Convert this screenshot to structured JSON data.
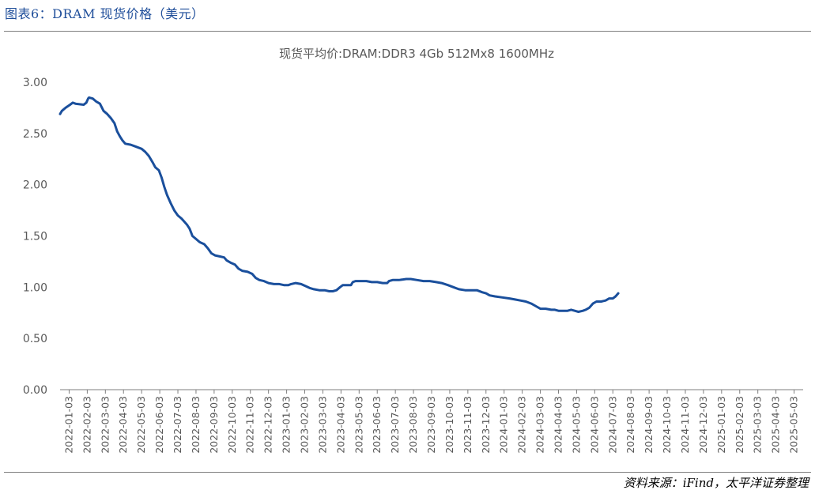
{
  "header": {
    "title": "图表6：DRAM 现货价格（美元）"
  },
  "footer": {
    "source": "资料来源：iFind，太平洋证券整理"
  },
  "colors": {
    "line": "#1a4f9c",
    "title": "#1f4e9a",
    "axis": "#7f7f7f",
    "text": "#595959"
  },
  "chart_data": {
    "type": "line",
    "title": "现货平均价:DRAM:DDR3 4Gb 512Mx8 1600MHz",
    "xlabel": "",
    "ylabel": "",
    "ylim": [
      0,
      3
    ],
    "yticks": [
      "0.00",
      "0.50",
      "1.00",
      "1.50",
      "2.00",
      "2.50",
      "3.00"
    ],
    "grid": false,
    "legend": "none",
    "x_categories": [
      "2022-01-03",
      "2022-02-03",
      "2022-03-03",
      "2022-04-03",
      "2022-05-03",
      "2022-06-03",
      "2022-07-03",
      "2022-08-03",
      "2022-09-03",
      "2022-10-03",
      "2022-11-03",
      "2022-12-03",
      "2023-01-03",
      "2023-02-03",
      "2023-03-03",
      "2023-04-03",
      "2023-05-03",
      "2023-06-03",
      "2023-07-03",
      "2023-08-03",
      "2023-09-03",
      "2023-10-03",
      "2023-11-03",
      "2023-12-03",
      "2024-01-03",
      "2024-02-03",
      "2024-03-03",
      "2024-04-03",
      "2024-05-03",
      "2024-06-03",
      "2024-07-03",
      "2024-08-03",
      "2024-09-03",
      "2024-10-03",
      "2024-11-03",
      "2024-12-03",
      "2025-01-03",
      "2025-02-03",
      "2025-03-03",
      "2025-04-03",
      "2025-05-03"
    ],
    "series": [
      {
        "name": "现货平均价:DRAM:DDR3 4Gb 512Mx8 1600MHz",
        "points": [
          [
            0.0,
            2.69
          ],
          [
            0.1,
            2.72
          ],
          [
            0.3,
            2.75
          ],
          [
            0.55,
            2.78
          ],
          [
            0.7,
            2.8
          ],
          [
            0.85,
            2.79
          ],
          [
            1.3,
            2.78
          ],
          [
            1.45,
            2.8
          ],
          [
            1.55,
            2.84
          ],
          [
            1.6,
            2.85
          ],
          [
            1.8,
            2.84
          ],
          [
            2.0,
            2.81
          ],
          [
            2.2,
            2.79
          ],
          [
            2.4,
            2.72
          ],
          [
            2.6,
            2.69
          ],
          [
            2.8,
            2.65
          ],
          [
            3.0,
            2.6
          ],
          [
            3.15,
            2.52
          ],
          [
            3.3,
            2.47
          ],
          [
            3.45,
            2.43
          ],
          [
            3.6,
            2.4
          ],
          [
            3.9,
            2.39
          ],
          [
            4.2,
            2.37
          ],
          [
            4.5,
            2.35
          ],
          [
            4.7,
            2.32
          ],
          [
            4.9,
            2.28
          ],
          [
            5.1,
            2.22
          ],
          [
            5.25,
            2.17
          ],
          [
            5.45,
            2.14
          ],
          [
            5.6,
            2.07
          ],
          [
            5.75,
            1.98
          ],
          [
            5.9,
            1.9
          ],
          [
            6.1,
            1.82
          ],
          [
            6.3,
            1.75
          ],
          [
            6.5,
            1.7
          ],
          [
            6.7,
            1.67
          ],
          [
            6.85,
            1.64
          ],
          [
            7.0,
            1.61
          ],
          [
            7.15,
            1.57
          ],
          [
            7.3,
            1.5
          ],
          [
            7.5,
            1.47
          ],
          [
            7.7,
            1.44
          ],
          [
            7.95,
            1.42
          ],
          [
            8.15,
            1.38
          ],
          [
            8.35,
            1.33
          ],
          [
            8.55,
            1.31
          ],
          [
            8.8,
            1.3
          ],
          [
            9.05,
            1.29
          ],
          [
            9.2,
            1.26
          ],
          [
            9.4,
            1.24
          ],
          [
            9.65,
            1.22
          ],
          [
            9.85,
            1.18
          ],
          [
            10.05,
            1.16
          ],
          [
            10.35,
            1.15
          ],
          [
            10.6,
            1.13
          ],
          [
            10.8,
            1.09
          ],
          [
            11.0,
            1.07
          ],
          [
            11.25,
            1.06
          ],
          [
            11.5,
            1.04
          ],
          [
            11.8,
            1.03
          ],
          [
            12.1,
            1.03
          ],
          [
            12.35,
            1.02
          ],
          [
            12.6,
            1.02
          ],
          [
            12.75,
            1.03
          ],
          [
            13.0,
            1.04
          ],
          [
            13.3,
            1.03
          ],
          [
            13.55,
            1.01
          ],
          [
            13.8,
            0.99
          ],
          [
            14.0,
            0.98
          ],
          [
            14.3,
            0.97
          ],
          [
            14.6,
            0.97
          ],
          [
            14.85,
            0.96
          ],
          [
            15.05,
            0.96
          ],
          [
            15.25,
            0.97
          ],
          [
            15.45,
            1.0
          ],
          [
            15.6,
            1.02
          ],
          [
            15.8,
            1.02
          ],
          [
            16.05,
            1.02
          ],
          [
            16.15,
            1.05
          ],
          [
            16.3,
            1.06
          ],
          [
            16.6,
            1.06
          ],
          [
            16.9,
            1.06
          ],
          [
            17.2,
            1.05
          ],
          [
            17.5,
            1.05
          ],
          [
            17.8,
            1.04
          ],
          [
            18.05,
            1.04
          ],
          [
            18.15,
            1.06
          ],
          [
            18.35,
            1.07
          ],
          [
            18.7,
            1.07
          ],
          [
            19.1,
            1.08
          ],
          [
            19.35,
            1.08
          ],
          [
            19.7,
            1.07
          ],
          [
            20.05,
            1.06
          ],
          [
            20.4,
            1.06
          ],
          [
            20.75,
            1.05
          ],
          [
            21.05,
            1.04
          ],
          [
            21.4,
            1.02
          ],
          [
            21.7,
            1.0
          ],
          [
            22.0,
            0.98
          ],
          [
            22.35,
            0.97
          ],
          [
            22.7,
            0.97
          ],
          [
            23.0,
            0.97
          ],
          [
            23.3,
            0.95
          ],
          [
            23.5,
            0.94
          ],
          [
            23.7,
            0.92
          ],
          [
            24.0,
            0.91
          ],
          [
            24.4,
            0.9
          ],
          [
            24.8,
            0.89
          ],
          [
            25.1,
            0.88
          ],
          [
            25.4,
            0.87
          ],
          [
            25.7,
            0.86
          ],
          [
            26.0,
            0.84
          ],
          [
            26.3,
            0.81
          ],
          [
            26.5,
            0.79
          ],
          [
            26.8,
            0.79
          ],
          [
            27.1,
            0.78
          ],
          [
            27.3,
            0.78
          ],
          [
            27.5,
            0.77
          ],
          [
            27.8,
            0.77
          ],
          [
            28.0,
            0.77
          ],
          [
            28.2,
            0.78
          ],
          [
            28.4,
            0.77
          ],
          [
            28.6,
            0.76
          ],
          [
            28.85,
            0.77
          ],
          [
            29.0,
            0.78
          ],
          [
            29.2,
            0.8
          ],
          [
            29.4,
            0.84
          ],
          [
            29.6,
            0.86
          ],
          [
            29.85,
            0.86
          ],
          [
            30.1,
            0.87
          ],
          [
            30.3,
            0.89
          ],
          [
            30.5,
            0.89
          ],
          [
            30.65,
            0.91
          ],
          [
            30.8,
            0.94
          ]
        ]
      }
    ]
  }
}
